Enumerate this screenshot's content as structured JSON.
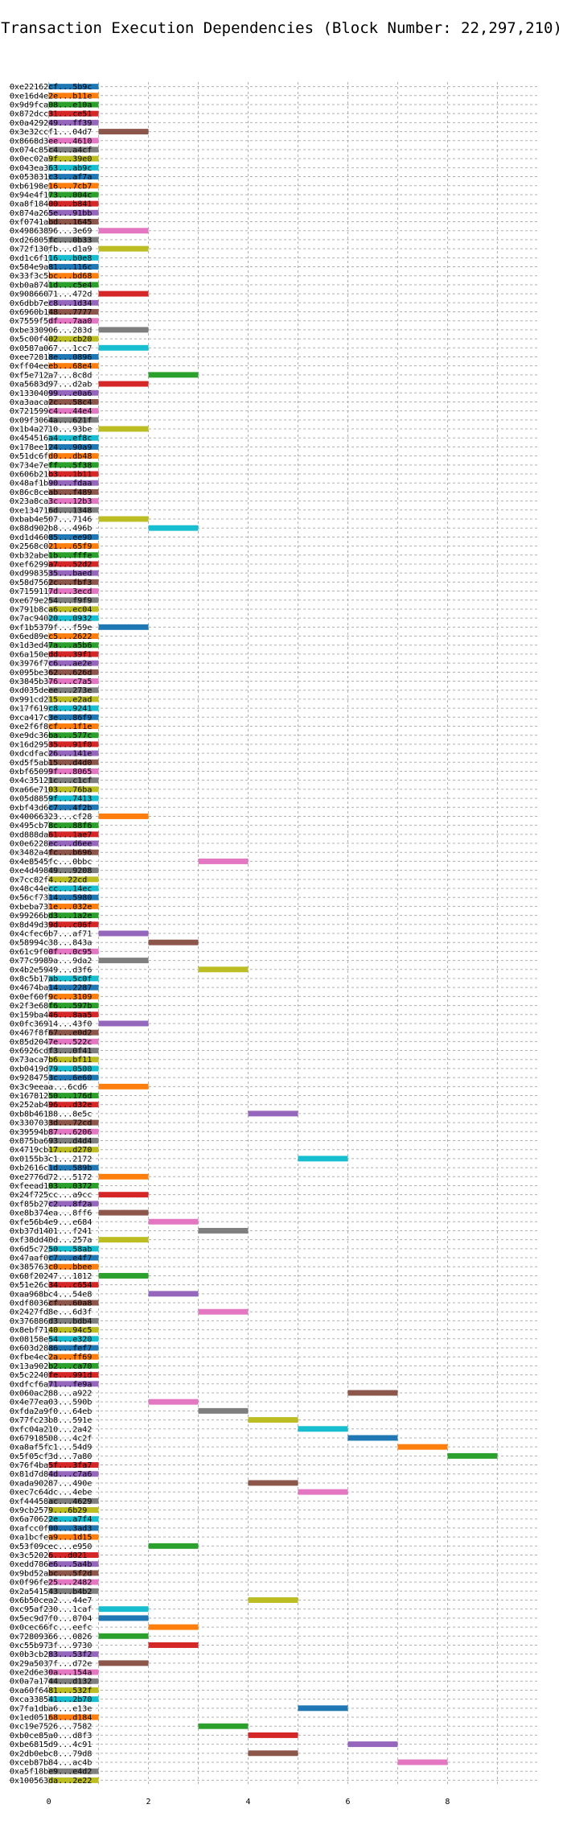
{
  "chart_data": {
    "type": "bar",
    "title": "Transaction Execution Dependencies (Block Number: 22,297,210)",
    "xlabel": "",
    "ylabel": "",
    "xlim": [
      -0.8,
      9.8
    ],
    "x_ticks": [
      0,
      2,
      4,
      6,
      8
    ],
    "grid": true,
    "palette": [
      "#1f77b4",
      "#ff7f0e",
      "#2ca02c",
      "#d62728",
      "#9467bd",
      "#8c564b",
      "#e377c2",
      "#7f7f7f",
      "#bcbd22",
      "#17becf"
    ],
    "transactions": [
      {
        "hash": "0xe22162cf...5b9c",
        "start": 0,
        "end": 1
      },
      {
        "hash": "0xe16d4e2e...b11e",
        "start": 0,
        "end": 1
      },
      {
        "hash": "0x9d9fca08...e10a",
        "start": 0,
        "end": 1
      },
      {
        "hash": "0x872dcc31...ce51",
        "start": 0,
        "end": 1
      },
      {
        "hash": "0x0a429249...ff39",
        "start": 0,
        "end": 1
      },
      {
        "hash": "0x3e32ccf1...04d7",
        "start": 1,
        "end": 2
      },
      {
        "hash": "0x8668d3ee...4610",
        "start": 0,
        "end": 1
      },
      {
        "hash": "0x074c85c4...a4cf",
        "start": 0,
        "end": 1
      },
      {
        "hash": "0x0ec02a9f...39e0",
        "start": 0,
        "end": 1
      },
      {
        "hash": "0x043ea363...ab9c",
        "start": 0,
        "end": 1
      },
      {
        "hash": "0x053831c3...af7a",
        "start": 0,
        "end": 1
      },
      {
        "hash": "0xb6198e16...7cb7",
        "start": 0,
        "end": 1
      },
      {
        "hash": "0x94e4f173...004c",
        "start": 0,
        "end": 1
      },
      {
        "hash": "0xa8f18400...b841",
        "start": 0,
        "end": 1
      },
      {
        "hash": "0x874a265e...91bb",
        "start": 0,
        "end": 1
      },
      {
        "hash": "0xf0741abd...1645",
        "start": 0,
        "end": 1
      },
      {
        "hash": "0x49863896...3e69",
        "start": 1,
        "end": 2
      },
      {
        "hash": "0xd26805fc...0b33",
        "start": 0,
        "end": 1
      },
      {
        "hash": "0x72f130fb...d1a9",
        "start": 1,
        "end": 2
      },
      {
        "hash": "0xd1c6f116...b0e8",
        "start": 0,
        "end": 1
      },
      {
        "hash": "0x584e9a81...116c",
        "start": 0,
        "end": 1
      },
      {
        "hash": "0x33f3c5bc...bd68",
        "start": 0,
        "end": 1
      },
      {
        "hash": "0xb0a8741d...c5e4",
        "start": 0,
        "end": 1
      },
      {
        "hash": "0x90866071...472d",
        "start": 1,
        "end": 2
      },
      {
        "hash": "0x6dbb7ec8...1d34",
        "start": 0,
        "end": 1
      },
      {
        "hash": "0x6960b148...7777",
        "start": 0,
        "end": 1
      },
      {
        "hash": "0x7559f5df...7aa0",
        "start": 0,
        "end": 1
      },
      {
        "hash": "0xbe330906...283d",
        "start": 1,
        "end": 2
      },
      {
        "hash": "0x5c00f402...cb20",
        "start": 0,
        "end": 1
      },
      {
        "hash": "0x0587a067...1cc7",
        "start": 1,
        "end": 2
      },
      {
        "hash": "0xee72818e...0896",
        "start": 0,
        "end": 1
      },
      {
        "hash": "0xff04eeeb...68e4",
        "start": 0,
        "end": 1
      },
      {
        "hash": "0xf5e712a7...8c8d",
        "start": 2,
        "end": 3
      },
      {
        "hash": "0xa5683d97...d2ab",
        "start": 1,
        "end": 2
      },
      {
        "hash": "0x13304099...e0a6",
        "start": 0,
        "end": 1
      },
      {
        "hash": "0xa3aaca2c...58c4",
        "start": 0,
        "end": 1
      },
      {
        "hash": "0x721599c4...44e4",
        "start": 0,
        "end": 1
      },
      {
        "hash": "0x09f3064a...621f",
        "start": 0,
        "end": 1
      },
      {
        "hash": "0x1b4a2710...93be",
        "start": 1,
        "end": 2
      },
      {
        "hash": "0x454516a4...ef8c",
        "start": 0,
        "end": 1
      },
      {
        "hash": "0x178ee124...90a9",
        "start": 0,
        "end": 1
      },
      {
        "hash": "0x51dc6fd0...db48",
        "start": 0,
        "end": 1
      },
      {
        "hash": "0x734e7eff...5f38",
        "start": 0,
        "end": 1
      },
      {
        "hash": "0x606b21b3...1b11",
        "start": 0,
        "end": 1
      },
      {
        "hash": "0x48af1b90...fdaa",
        "start": 0,
        "end": 1
      },
      {
        "hash": "0x86c8ceab...f489",
        "start": 0,
        "end": 1
      },
      {
        "hash": "0x23a8ca3c...12b3",
        "start": 0,
        "end": 1
      },
      {
        "hash": "0xe134716d...1348",
        "start": 0,
        "end": 1
      },
      {
        "hash": "0xbab4e507...7146",
        "start": 1,
        "end": 2
      },
      {
        "hash": "0x88d902b8...496b",
        "start": 2,
        "end": 3
      },
      {
        "hash": "0xd1d46085...ee90",
        "start": 0,
        "end": 1
      },
      {
        "hash": "0x2568c021...65f9",
        "start": 0,
        "end": 1
      },
      {
        "hash": "0xb32abe1b...fffe",
        "start": 0,
        "end": 1
      },
      {
        "hash": "0xef6299a7...52d2",
        "start": 0,
        "end": 1
      },
      {
        "hash": "0xd9983535...baed",
        "start": 0,
        "end": 1
      },
      {
        "hash": "0x58d7562c...fbf3",
        "start": 0,
        "end": 1
      },
      {
        "hash": "0x7159117d...3ecd",
        "start": 0,
        "end": 1
      },
      {
        "hash": "0xe679e254...f9f9",
        "start": 0,
        "end": 1
      },
      {
        "hash": "0x791b8ca6...ec04",
        "start": 0,
        "end": 1
      },
      {
        "hash": "0x7ac94020...0932",
        "start": 0,
        "end": 1
      },
      {
        "hash": "0xf1b5379f...f59e",
        "start": 1,
        "end": 2
      },
      {
        "hash": "0x6ed89ec5...2622",
        "start": 0,
        "end": 1
      },
      {
        "hash": "0x1d3ed47a...a5b6",
        "start": 0,
        "end": 1
      },
      {
        "hash": "0x6a150edd...39f1",
        "start": 0,
        "end": 1
      },
      {
        "hash": "0x3976f7c6...ae2e",
        "start": 0,
        "end": 1
      },
      {
        "hash": "0x095be362...626d",
        "start": 0,
        "end": 1
      },
      {
        "hash": "0x3845b376...c7a5",
        "start": 0,
        "end": 1
      },
      {
        "hash": "0xd035deee...273e",
        "start": 0,
        "end": 1
      },
      {
        "hash": "0x991cd215...e2ad",
        "start": 0,
        "end": 1
      },
      {
        "hash": "0x17f619c8...9241",
        "start": 0,
        "end": 1
      },
      {
        "hash": "0xca417c3e...86f9",
        "start": 0,
        "end": 1
      },
      {
        "hash": "0xe2f6f8cf...1f1e",
        "start": 0,
        "end": 1
      },
      {
        "hash": "0xe9dc36ba...577c",
        "start": 0,
        "end": 1
      },
      {
        "hash": "0x16d29535...91f0",
        "start": 0,
        "end": 1
      },
      {
        "hash": "0xdcdfac26...141e",
        "start": 0,
        "end": 1
      },
      {
        "hash": "0xd5f5ab15...d4d0",
        "start": 0,
        "end": 1
      },
      {
        "hash": "0xbf65099f...8065",
        "start": 0,
        "end": 1
      },
      {
        "hash": "0x4c35121c...c1cf",
        "start": 0,
        "end": 1
      },
      {
        "hash": "0xa66e7103...76ba",
        "start": 0,
        "end": 1
      },
      {
        "hash": "0x05d8859f...7413",
        "start": 0,
        "end": 1
      },
      {
        "hash": "0xbf43d6c7...4f2b",
        "start": 0,
        "end": 1
      },
      {
        "hash": "0x40066323...cf28",
        "start": 1,
        "end": 2
      },
      {
        "hash": "0x495cb78c...88f6",
        "start": 0,
        "end": 1
      },
      {
        "hash": "0xd888da61...1ae7",
        "start": 0,
        "end": 1
      },
      {
        "hash": "0x0e6228ec...d6ee",
        "start": 0,
        "end": 1
      },
      {
        "hash": "0x3482a4fc...b696",
        "start": 0,
        "end": 1
      },
      {
        "hash": "0x4e8545fc...0bbc",
        "start": 3,
        "end": 4
      },
      {
        "hash": "0xe4d49849...9208",
        "start": 0,
        "end": 1
      },
      {
        "hash": "0x7cc82f4...22cd",
        "start": 0,
        "end": 1
      },
      {
        "hash": "0x48c44ecc...14ec",
        "start": 0,
        "end": 1
      },
      {
        "hash": "0x56cf7314...5980",
        "start": 0,
        "end": 1
      },
      {
        "hash": "0xbeba731e...032e",
        "start": 0,
        "end": 1
      },
      {
        "hash": "0x99266bd3...1a2e",
        "start": 0,
        "end": 1
      },
      {
        "hash": "0x8d49d39d...c06f",
        "start": 0,
        "end": 1
      },
      {
        "hash": "0x4cfec6b7...af71",
        "start": 1,
        "end": 2
      },
      {
        "hash": "0x58994c38...843a",
        "start": 2,
        "end": 3
      },
      {
        "hash": "0x61c9f00f...0c95",
        "start": 0,
        "end": 1
      },
      {
        "hash": "0x77c9989a...9da2",
        "start": 1,
        "end": 2
      },
      {
        "hash": "0x4b2e5949...d3f6",
        "start": 3,
        "end": 4
      },
      {
        "hash": "0x8c5b17ab...5c0f",
        "start": 0,
        "end": 1
      },
      {
        "hash": "0x4674ba14...2287",
        "start": 0,
        "end": 1
      },
      {
        "hash": "0x0ef60f9c...3109",
        "start": 0,
        "end": 1
      },
      {
        "hash": "0x2f3e68f6...597b",
        "start": 0,
        "end": 1
      },
      {
        "hash": "0x159ba446...8aa5",
        "start": 0,
        "end": 1
      },
      {
        "hash": "0x0fc36914...43f0",
        "start": 1,
        "end": 2
      },
      {
        "hash": "0x467f8f67...e0d2",
        "start": 0,
        "end": 1
      },
      {
        "hash": "0x85d2047e...522c",
        "start": 0,
        "end": 1
      },
      {
        "hash": "0x6926cdf3...0f41",
        "start": 0,
        "end": 1
      },
      {
        "hash": "0x73aca7b6...bf11",
        "start": 0,
        "end": 1
      },
      {
        "hash": "0xb0419d79...0500",
        "start": 0,
        "end": 1
      },
      {
        "hash": "0x9284753c...6e60",
        "start": 0,
        "end": 1
      },
      {
        "hash": "0x3c9eeaa...6cd6",
        "start": 1,
        "end": 2
      },
      {
        "hash": "0x16781250...176d",
        "start": 0,
        "end": 1
      },
      {
        "hash": "0x252ab496...d32e",
        "start": 0,
        "end": 1
      },
      {
        "hash": "0xb8b46188...8e5c",
        "start": 4,
        "end": 5
      },
      {
        "hash": "0x3307033d...72cd",
        "start": 0,
        "end": 1
      },
      {
        "hash": "0x39594b87...6206",
        "start": 0,
        "end": 1
      },
      {
        "hash": "0x875ba693...d4d4",
        "start": 0,
        "end": 1
      },
      {
        "hash": "0x4719cb17...d270",
        "start": 0,
        "end": 1
      },
      {
        "hash": "0x0155b3c1...2172",
        "start": 5,
        "end": 6
      },
      {
        "hash": "0xb2616c1d...589b",
        "start": 0,
        "end": 1
      },
      {
        "hash": "0xe2776d72...5172",
        "start": 1,
        "end": 2
      },
      {
        "hash": "0xfeead103...0372",
        "start": 0,
        "end": 1
      },
      {
        "hash": "0x24f725cc...a9cc",
        "start": 1,
        "end": 2
      },
      {
        "hash": "0xf85b27c2...8f2a",
        "start": 0,
        "end": 1
      },
      {
        "hash": "0xe8b374ea...8ff6",
        "start": 1,
        "end": 2
      },
      {
        "hash": "0xfe56b4e9...e684",
        "start": 2,
        "end": 3
      },
      {
        "hash": "0xb37d1401...f241",
        "start": 3,
        "end": 4
      },
      {
        "hash": "0xf38dd40d...257a",
        "start": 1,
        "end": 2
      },
      {
        "hash": "0x6d5c7250...58ab",
        "start": 0,
        "end": 1
      },
      {
        "hash": "0x47aaf0c7...e4f7",
        "start": 0,
        "end": 1
      },
      {
        "hash": "0x385763c0...bbee",
        "start": 0,
        "end": 1
      },
      {
        "hash": "0x68f20247...1812",
        "start": 1,
        "end": 2
      },
      {
        "hash": "0x51e26c34...c654",
        "start": 0,
        "end": 1
      },
      {
        "hash": "0xaa968bc4...54e8",
        "start": 2,
        "end": 3
      },
      {
        "hash": "0xdf8036cf...60a8",
        "start": 0,
        "end": 1
      },
      {
        "hash": "0x2427fd8e...6d3f",
        "start": 3,
        "end": 4
      },
      {
        "hash": "0x376886d3...bdb4",
        "start": 0,
        "end": 1
      },
      {
        "hash": "0x8ebf7140...94c5",
        "start": 0,
        "end": 1
      },
      {
        "hash": "0x08158e54...e320",
        "start": 0,
        "end": 1
      },
      {
        "hash": "0x603d2886...fef7",
        "start": 0,
        "end": 1
      },
      {
        "hash": "0xfbe4ec2a...ff69",
        "start": 0,
        "end": 1
      },
      {
        "hash": "0x13a902b2...ca70",
        "start": 0,
        "end": 1
      },
      {
        "hash": "0x5c2240fe...991d",
        "start": 0,
        "end": 1
      },
      {
        "hash": "0xdfcf6a71...fe9a",
        "start": 0,
        "end": 1
      },
      {
        "hash": "0x060ac288...a922",
        "start": 6,
        "end": 7
      },
      {
        "hash": "0x4e77ea03...590b",
        "start": 2,
        "end": 3
      },
      {
        "hash": "0xfda2a9f0...64eb",
        "start": 3,
        "end": 4
      },
      {
        "hash": "0x77fc23b8...591e",
        "start": 4,
        "end": 5
      },
      {
        "hash": "0xfc04a210...2a42",
        "start": 5,
        "end": 6
      },
      {
        "hash": "0x67918508...4c2f",
        "start": 6,
        "end": 7
      },
      {
        "hash": "0xa8af5fc1...54d9",
        "start": 7,
        "end": 8
      },
      {
        "hash": "0x5f05cf3d...7a80",
        "start": 8,
        "end": 9
      },
      {
        "hash": "0x76f4ba5f...3fa7",
        "start": 0,
        "end": 1
      },
      {
        "hash": "0x81d7d84d...c7a6",
        "start": 0,
        "end": 1
      },
      {
        "hash": "0xada90287...490e",
        "start": 4,
        "end": 5
      },
      {
        "hash": "0xec7c64dc...4ebe",
        "start": 5,
        "end": 6
      },
      {
        "hash": "0xf44458ac...4629",
        "start": 0,
        "end": 1
      },
      {
        "hash": "0x9cb2579...6b29",
        "start": 0,
        "end": 1
      },
      {
        "hash": "0x6a70622e...a7f4",
        "start": 0,
        "end": 1
      },
      {
        "hash": "0xafcc0f00...3ad3",
        "start": 0,
        "end": 1
      },
      {
        "hash": "0xa1bcfea9...1d15",
        "start": 0,
        "end": 1
      },
      {
        "hash": "0x53f09cec...e950",
        "start": 2,
        "end": 3
      },
      {
        "hash": "0x3c52026...d021",
        "start": 0,
        "end": 1
      },
      {
        "hash": "0xedd786e6...5a4b",
        "start": 0,
        "end": 1
      },
      {
        "hash": "0x9bd52abc...5f2d",
        "start": 0,
        "end": 1
      },
      {
        "hash": "0x0f96fe25...2482",
        "start": 0,
        "end": 1
      },
      {
        "hash": "0x2a541543...b4b2",
        "start": 0,
        "end": 1
      },
      {
        "hash": "0x6b50cea2...44e7",
        "start": 4,
        "end": 5
      },
      {
        "hash": "0xc95af230...1caf",
        "start": 1,
        "end": 2
      },
      {
        "hash": "0x5ec9d7f0...8704",
        "start": 1,
        "end": 2
      },
      {
        "hash": "0x0cec66fc...eefc",
        "start": 2,
        "end": 3
      },
      {
        "hash": "0x72809366...0826",
        "start": 1,
        "end": 2
      },
      {
        "hash": "0xc55b973f...9730",
        "start": 2,
        "end": 3
      },
      {
        "hash": "0x0b3cb283...53f2",
        "start": 0,
        "end": 1
      },
      {
        "hash": "0x29a5037f...d72e",
        "start": 1,
        "end": 2
      },
      {
        "hash": "0xe2d6e30a...154a",
        "start": 0,
        "end": 1
      },
      {
        "hash": "0x0a7a1744...d132",
        "start": 0,
        "end": 1
      },
      {
        "hash": "0xa60f6481...532f",
        "start": 0,
        "end": 1
      },
      {
        "hash": "0xca338541...2b70",
        "start": 0,
        "end": 1
      },
      {
        "hash": "0x7fa1dba6...e13e",
        "start": 5,
        "end": 6
      },
      {
        "hash": "0x1ed05168...d184",
        "start": 0,
        "end": 1
      },
      {
        "hash": "0xc19e7526...7582",
        "start": 3,
        "end": 4
      },
      {
        "hash": "0xb0ce85a0...d8f3",
        "start": 4,
        "end": 5
      },
      {
        "hash": "0xbe6815d9...4c91",
        "start": 6,
        "end": 7
      },
      {
        "hash": "0x2db0ebc8...79d8",
        "start": 4,
        "end": 5
      },
      {
        "hash": "0xceb87b84...ac4b",
        "start": 7,
        "end": 8
      },
      {
        "hash": "0xa5f18be9...e4d2",
        "start": 0,
        "end": 1
      },
      {
        "hash": "0x100563da...2e22",
        "start": 0,
        "end": 1
      }
    ]
  }
}
